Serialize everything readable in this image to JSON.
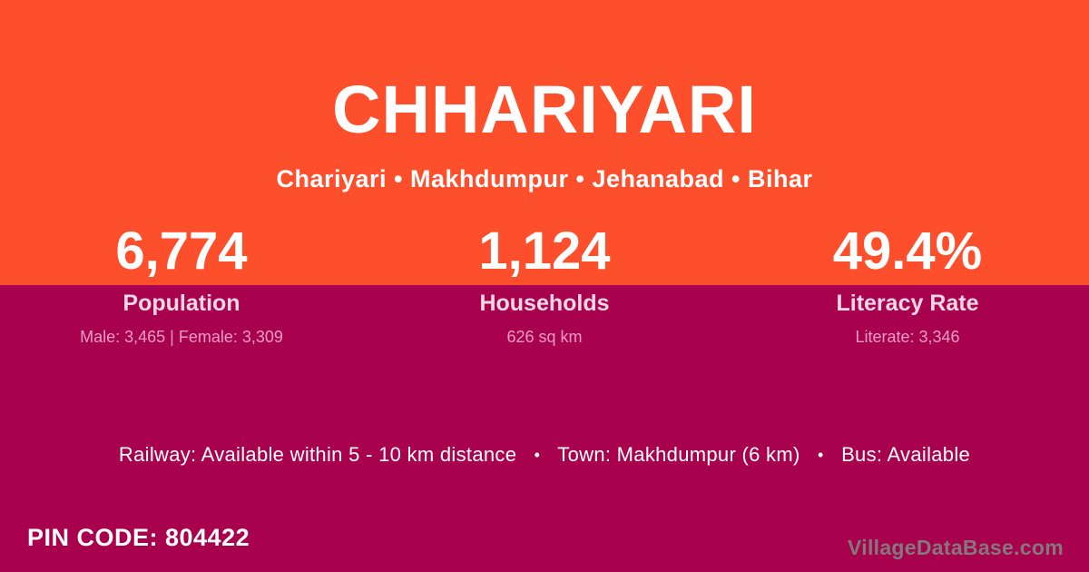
{
  "colors": {
    "top_background": "#FD4F2C",
    "bottom_background": "#A8024E",
    "primary_text": "#FFFFFF",
    "stat_label_text": "#F5D7E6",
    "stat_detail_text": "#EE9CC2",
    "watermark_text": "#84787E"
  },
  "header": {
    "title": "CHHARIYARI",
    "breadcrumb": "Chariyari • Makhdumpur • Jehanabad • Bihar"
  },
  "stats": [
    {
      "value": "6,774",
      "label": "Population",
      "detail": "Male: 3,465 | Female: 3,309"
    },
    {
      "value": "1,124",
      "label": "Households",
      "detail": "626 sq km"
    },
    {
      "value": "49.4%",
      "label": "Literacy Rate",
      "detail": "Literate: 3,346"
    }
  ],
  "amenities": {
    "separator": "•",
    "items": [
      "Railway: Available within 5 - 10 km distance",
      "Town: Makhdumpur (6 km)",
      "Bus: Available"
    ]
  },
  "footer": {
    "pin_code": "PIN CODE: 804422",
    "watermark": "VillageDataBase.com"
  }
}
